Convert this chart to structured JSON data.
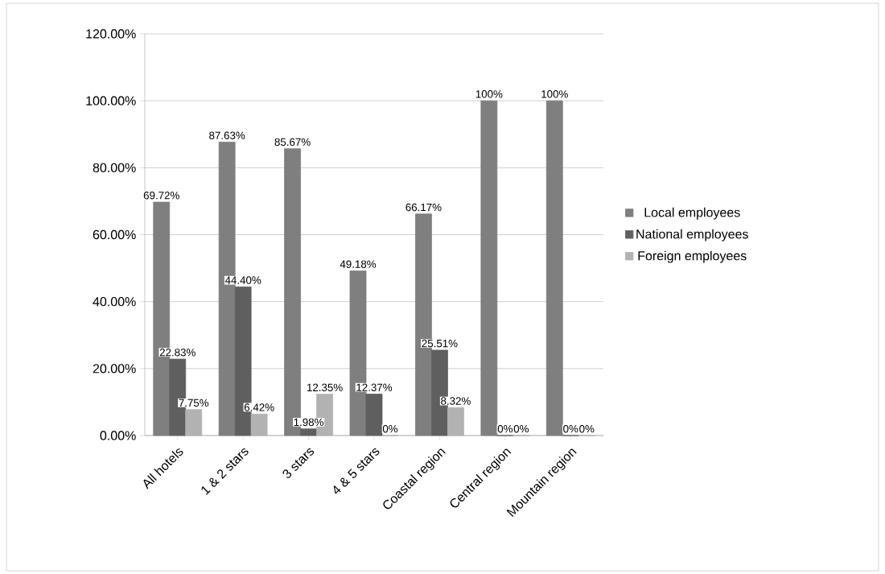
{
  "chart_data": {
    "type": "bar",
    "categories": [
      "All hotels",
      "1 & 2 stars",
      "3 stars",
      "4 & 5 stars",
      "Coastal region",
      "Central region",
      "Mountain region"
    ],
    "series": [
      {
        "name": "Local employees",
        "color": "#7f7f7f",
        "values": [
          69.72,
          87.63,
          85.67,
          49.18,
          66.17,
          100,
          100
        ],
        "value_labels": [
          "69.72%",
          "87.63%",
          "85.67%",
          "49.18%",
          "66.17%",
          "100%",
          "100%"
        ]
      },
      {
        "name": "National employees",
        "color": "#5f5f5f",
        "values": [
          22.83,
          44.4,
          1.98,
          12.37,
          25.51,
          0,
          0
        ],
        "value_labels": [
          "22.83%",
          "44.40%",
          "1.98%",
          "12.37%",
          "25.51%",
          "0%",
          "0%"
        ]
      },
      {
        "name": "Foreign employees",
        "color": "#b2b2b2",
        "values": [
          7.75,
          6.42,
          12.35,
          0,
          8.32,
          0,
          0
        ],
        "value_labels": [
          "7.75%",
          "6.42%",
          "12.35%",
          "0%",
          "8.32%",
          "0%",
          "0%"
        ]
      }
    ],
    "ylim": [
      0,
      120
    ],
    "yticks": [
      {
        "value": 0,
        "label": "0.00%"
      },
      {
        "value": 20,
        "label": "20.00%"
      },
      {
        "value": 40,
        "label": "40.00%"
      },
      {
        "value": 60,
        "label": "60.00%"
      },
      {
        "value": 80,
        "label": "80.00%"
      },
      {
        "value": 100,
        "label": "100.00%"
      },
      {
        "value": 120,
        "label": "120.00%"
      }
    ],
    "grid": "y",
    "legend": "right"
  }
}
